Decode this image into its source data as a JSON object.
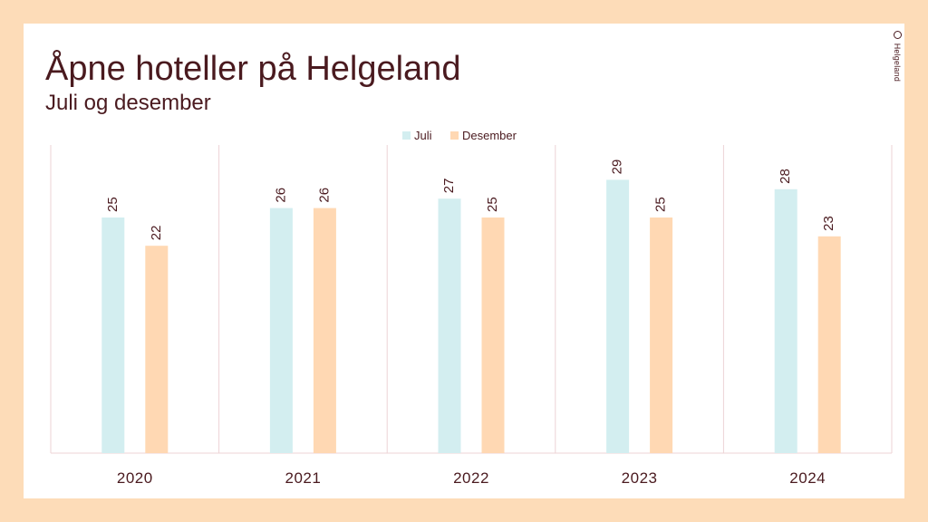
{
  "page": {
    "title": "Åpne hoteller på Helgeland",
    "subtitle": "Juli og desember"
  },
  "brand": {
    "text": "Helgeland",
    "icon": "logo-mark-icon"
  },
  "colors": {
    "background": "#FDDCB8",
    "juli": "#D3EEF0",
    "desember": "#FFD8B3",
    "text": "#4A1A1F",
    "grid": "#EDD3D6"
  },
  "chart_data": {
    "type": "bar",
    "title": "Åpne hoteller på Helgeland",
    "subtitle": "Juli og desember",
    "categories": [
      "2020",
      "2021",
      "2022",
      "2023",
      "2024"
    ],
    "series": [
      {
        "name": "Juli",
        "values": [
          25,
          26,
          27,
          29,
          28
        ]
      },
      {
        "name": "Desember",
        "values": [
          22,
          26,
          25,
          25,
          23
        ]
      }
    ],
    "xlabel": "",
    "ylabel": "",
    "ylim": [
      0,
      30
    ],
    "legend": "top-center",
    "data_labels": true,
    "grid": "vertical-separators"
  }
}
